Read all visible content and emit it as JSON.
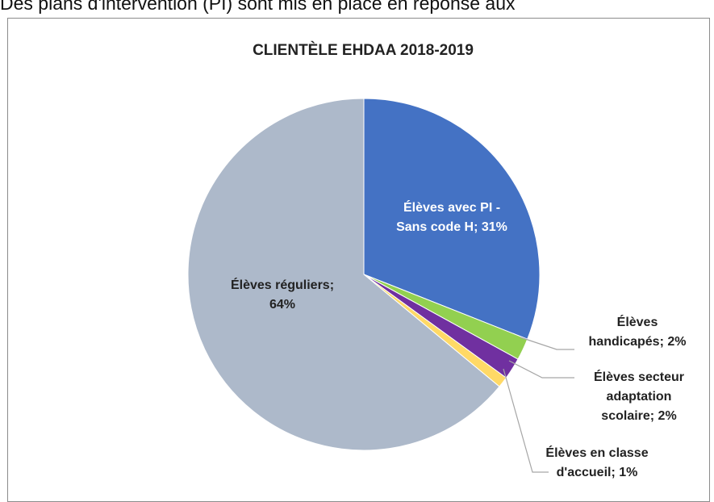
{
  "page": {
    "top_text": "Des plans d'intervention (PI) sont mis en place en réponse aux"
  },
  "chart_data": {
    "type": "pie",
    "title": "CLIENTÈLE EHDAA 2018-2019",
    "start_angle_deg": 0,
    "direction": "clockwise",
    "slices": [
      {
        "label_lines": [
          "Élèves avec PI -",
          "Sans code H; 31%"
        ],
        "value": 31,
        "color": "#4472C4",
        "label_color": "#ffffff"
      },
      {
        "label_lines": [
          "Élèves",
          "handicapés; 2%"
        ],
        "value": 2,
        "color": "#92D050",
        "label_color": "#222222"
      },
      {
        "label_lines": [
          "Élèves secteur",
          "adaptation",
          "scolaire; 2%"
        ],
        "value": 2,
        "color": "#7030A0",
        "label_color": "#222222"
      },
      {
        "label_lines": [
          "Élèves en classe",
          "d'accueil; 1%"
        ],
        "value": 1,
        "color": "#FFD966",
        "label_color": "#222222"
      },
      {
        "label_lines": [
          "Élèves réguliers;",
          "64%"
        ],
        "value": 64,
        "color": "#ADB9CA",
        "label_color": "#222222"
      }
    ]
  }
}
